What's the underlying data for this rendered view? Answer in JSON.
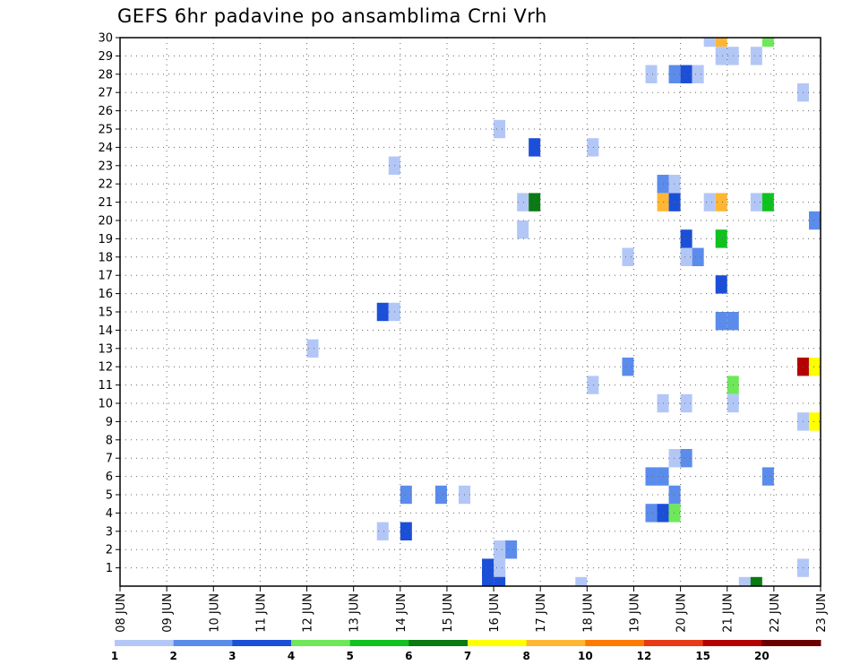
{
  "chart_data": {
    "type": "heatmap",
    "title": "GEFS 6hr padavine po ansamblima Crni Vrh",
    "xlabel": "",
    "ylabel": "",
    "y_tick_labels": [
      "1",
      "2",
      "3",
      "4",
      "5",
      "6",
      "7",
      "8",
      "9",
      "10",
      "11",
      "12",
      "13",
      "14",
      "15",
      "16",
      "17",
      "18",
      "19",
      "20",
      "21",
      "22",
      "23",
      "24",
      "25",
      "26",
      "27",
      "28",
      "29",
      "30"
    ],
    "x_tick_labels": [
      "08 JUN",
      "09 JUN",
      "10 JUN",
      "11 JUN",
      "12 JUN",
      "13 JUN",
      "14 JUN",
      "15 JUN",
      "16 JUN",
      "17 JUN",
      "18 JUN",
      "19 JUN",
      "20 JUN",
      "21 JUN",
      "22 JUN",
      "23 JUN"
    ],
    "xlim_days": [
      8,
      23
    ],
    "ylim_members": [
      0,
      30
    ],
    "grid": true,
    "colorbar": {
      "placement": "bottom",
      "labels": [
        "1",
        "2",
        "3",
        "4",
        "5",
        "6",
        "7",
        "8",
        "10",
        "12",
        "15",
        "20"
      ],
      "colors": [
        "#b3c7f7",
        "#5b8cec",
        "#1c4fd8",
        "#6ee85a",
        "#10c21e",
        "#0a7a12",
        "#ffff00",
        "#ffb733",
        "#ff7a00",
        "#e83a14",
        "#b40000",
        "#6b0000"
      ]
    },
    "cells": [
      {
        "day": 15.875,
        "member": 0.5,
        "color": "#1c4fd8"
      },
      {
        "day": 16.125,
        "member": 0.5,
        "color": "#1c4fd8"
      },
      {
        "day": 15.875,
        "member": 1,
        "color": "#1c4fd8"
      },
      {
        "day": 16.125,
        "member": 1,
        "color": "#b3c7f7"
      },
      {
        "day": 16.125,
        "member": 2,
        "color": "#b3c7f7"
      },
      {
        "day": 16.375,
        "member": 2,
        "color": "#5b8cec"
      },
      {
        "day": 13.625,
        "member": 3,
        "color": "#b3c7f7"
      },
      {
        "day": 14.125,
        "member": 3,
        "color": "#1c4fd8"
      },
      {
        "day": 14.125,
        "member": 5,
        "color": "#5b8cec"
      },
      {
        "day": 14.875,
        "member": 5,
        "color": "#5b8cec"
      },
      {
        "day": 15.375,
        "member": 5,
        "color": "#b3c7f7"
      },
      {
        "day": 12.125,
        "member": 13,
        "color": "#b3c7f7"
      },
      {
        "day": 13.625,
        "member": 15,
        "color": "#1c4fd8"
      },
      {
        "day": 13.875,
        "member": 15,
        "color": "#b3c7f7"
      },
      {
        "day": 13.875,
        "member": 23,
        "color": "#b3c7f7"
      },
      {
        "day": 16.125,
        "member": 25,
        "color": "#b3c7f7"
      },
      {
        "day": 16.625,
        "member": 19.5,
        "color": "#b3c7f7"
      },
      {
        "day": 16.625,
        "member": 21,
        "color": "#b3c7f7"
      },
      {
        "day": 16.875,
        "member": 21,
        "color": "#0a7a12"
      },
      {
        "day": 16.875,
        "member": 24,
        "color": "#1c4fd8"
      },
      {
        "day": 17.875,
        "member": 0,
        "color": "#b3c7f7"
      },
      {
        "day": 18.125,
        "member": 11,
        "color": "#b3c7f7"
      },
      {
        "day": 18.125,
        "member": 24,
        "color": "#b3c7f7"
      },
      {
        "day": 18.875,
        "member": 12,
        "color": "#5b8cec"
      },
      {
        "day": 18.875,
        "member": 18,
        "color": "#b3c7f7"
      },
      {
        "day": 19.375,
        "member": 4,
        "color": "#5b8cec"
      },
      {
        "day": 19.625,
        "member": 4,
        "color": "#1c4fd8"
      },
      {
        "day": 19.875,
        "member": 4,
        "color": "#6ee85a"
      },
      {
        "day": 19.875,
        "member": 5,
        "color": "#5b8cec"
      },
      {
        "day": 19.375,
        "member": 6,
        "color": "#5b8cec"
      },
      {
        "day": 19.625,
        "member": 6,
        "color": "#5b8cec"
      },
      {
        "day": 19.875,
        "member": 7,
        "color": "#b3c7f7"
      },
      {
        "day": 20.125,
        "member": 7,
        "color": "#5b8cec"
      },
      {
        "day": 19.625,
        "member": 10,
        "color": "#b3c7f7"
      },
      {
        "day": 20.125,
        "member": 10,
        "color": "#b3c7f7"
      },
      {
        "day": 20.125,
        "member": 18,
        "color": "#b3c7f7"
      },
      {
        "day": 20.375,
        "member": 18,
        "color": "#5b8cec"
      },
      {
        "day": 20.125,
        "member": 19,
        "color": "#1c4fd8"
      },
      {
        "day": 19.625,
        "member": 21,
        "color": "#ffb733"
      },
      {
        "day": 19.875,
        "member": 21,
        "color": "#1c4fd8"
      },
      {
        "day": 19.625,
        "member": 22,
        "color": "#5b8cec"
      },
      {
        "day": 19.875,
        "member": 22,
        "color": "#b3c7f7"
      },
      {
        "day": 19.375,
        "member": 28,
        "color": "#b3c7f7"
      },
      {
        "day": 19.875,
        "member": 28,
        "color": "#5b8cec"
      },
      {
        "day": 20.125,
        "member": 28,
        "color": "#1c4fd8"
      },
      {
        "day": 20.375,
        "member": 28,
        "color": "#b3c7f7"
      },
      {
        "day": 20.625,
        "member": 21,
        "color": "#b3c7f7"
      },
      {
        "day": 20.875,
        "member": 21,
        "color": "#ffb733"
      },
      {
        "day": 20.625,
        "member": 30,
        "color": "#b3c7f7"
      },
      {
        "day": 20.875,
        "member": 30,
        "color": "#ffb733"
      },
      {
        "day": 20.875,
        "member": 29,
        "color": "#b3c7f7"
      },
      {
        "day": 21.125,
        "member": 29,
        "color": "#b3c7f7"
      },
      {
        "day": 20.875,
        "member": 19,
        "color": "#10c21e"
      },
      {
        "day": 20.875,
        "member": 16.5,
        "color": "#1c4fd8"
      },
      {
        "day": 20.875,
        "member": 14.5,
        "color": "#5b8cec"
      },
      {
        "day": 21.125,
        "member": 14.5,
        "color": "#5b8cec"
      },
      {
        "day": 21.125,
        "member": 11,
        "color": "#6ee85a"
      },
      {
        "day": 21.125,
        "member": 10,
        "color": "#b3c7f7"
      },
      {
        "day": 21.375,
        "member": 0,
        "color": "#b3c7f7"
      },
      {
        "day": 21.625,
        "member": 0,
        "color": "#0a7a12"
      },
      {
        "day": 21.625,
        "member": 21,
        "color": "#b3c7f7"
      },
      {
        "day": 21.875,
        "member": 21,
        "color": "#10c21e"
      },
      {
        "day": 21.625,
        "member": 29,
        "color": "#b3c7f7"
      },
      {
        "day": 21.875,
        "member": 30,
        "color": "#6ee85a"
      },
      {
        "day": 21.875,
        "member": 6,
        "color": "#5b8cec"
      },
      {
        "day": 22.625,
        "member": 1,
        "color": "#b3c7f7"
      },
      {
        "day": 22.625,
        "member": 9,
        "color": "#b3c7f7"
      },
      {
        "day": 22.875,
        "member": 9,
        "color": "#ffff00"
      },
      {
        "day": 22.625,
        "member": 12,
        "color": "#b40000"
      },
      {
        "day": 22.875,
        "member": 12,
        "color": "#ffff00"
      },
      {
        "day": 22.625,
        "member": 27,
        "color": "#b3c7f7"
      },
      {
        "day": 22.875,
        "member": 20,
        "color": "#5b8cec"
      }
    ]
  }
}
